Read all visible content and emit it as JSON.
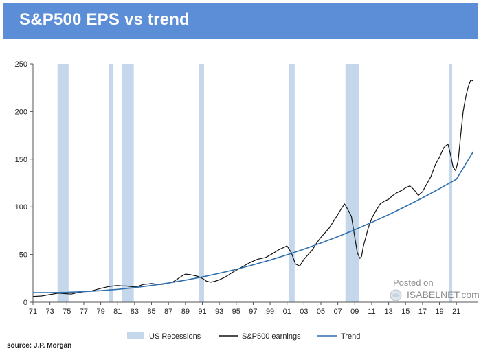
{
  "banner": {
    "title": "S&P500 EPS vs trend"
  },
  "chart_data": {
    "type": "line",
    "title": "S&P500 EPS vs trend",
    "xlabel": "",
    "ylabel": "",
    "xlim": [
      1971,
      2023.5
    ],
    "ylim": [
      0,
      250
    ],
    "yticks": [
      0,
      50,
      100,
      150,
      200,
      250
    ],
    "xtick_labels": [
      "71",
      "73",
      "75",
      "77",
      "79",
      "81",
      "83",
      "85",
      "87",
      "89",
      "91",
      "93",
      "95",
      "97",
      "99",
      "01",
      "03",
      "05",
      "07",
      "09",
      "11",
      "13",
      "15",
      "17",
      "19",
      "21"
    ],
    "grid": false,
    "legend_position": "bottom",
    "recessions": {
      "name": "US Recessions",
      "color": "#c5d7ea",
      "periods": [
        [
          1973.9,
          1975.2
        ],
        [
          1980.0,
          1980.5
        ],
        [
          1981.5,
          1982.9
        ],
        [
          1990.6,
          1991.2
        ],
        [
          2001.2,
          2001.9
        ],
        [
          2007.9,
          2009.5
        ],
        [
          2020.1,
          2020.5
        ]
      ]
    },
    "series": [
      {
        "name": "S&P500 earnings",
        "color": "#111111",
        "x": [
          1971.0,
          1972.0,
          1973.0,
          1974.0,
          1974.8,
          1975.5,
          1976.0,
          1977.0,
          1978.0,
          1979.0,
          1980.0,
          1980.5,
          1981.0,
          1981.5,
          1982.0,
          1982.5,
          1983.0,
          1983.5,
          1984.0,
          1985.0,
          1986.0,
          1986.5,
          1987.0,
          1987.5,
          1988.0,
          1988.5,
          1989.0,
          1989.5,
          1990.0,
          1990.5,
          1991.0,
          1991.5,
          1992.0,
          1992.5,
          1993.0,
          1993.5,
          1994.0,
          1994.5,
          1995.0,
          1995.5,
          1996.0,
          1996.5,
          1997.0,
          1997.5,
          1998.0,
          1998.5,
          1999.0,
          1999.5,
          2000.0,
          2000.5,
          2001.0,
          2001.5,
          2002.0,
          2002.5,
          2003.0,
          2003.5,
          2004.0,
          2004.5,
          2005.0,
          2005.5,
          2006.0,
          2006.5,
          2007.0,
          2007.4,
          2007.8,
          2008.2,
          2008.6,
          2009.0,
          2009.3,
          2009.6,
          2009.8,
          2010.0,
          2010.3,
          2010.6,
          2011.0,
          2011.5,
          2012.0,
          2012.5,
          2013.0,
          2013.5,
          2014.0,
          2014.5,
          2015.0,
          2015.5,
          2016.0,
          2016.5,
          2017.0,
          2017.5,
          2018.0,
          2018.5,
          2019.0,
          2019.5,
          2020.0,
          2020.3,
          2020.6,
          2020.9,
          2021.2,
          2021.5,
          2021.8,
          2022.1,
          2022.4,
          2022.7,
          2023.0
        ],
        "y": [
          6,
          6.5,
          8,
          9.5,
          9,
          8.5,
          9.5,
          11,
          12,
          14.5,
          16.5,
          17,
          17.5,
          17,
          17,
          16.5,
          16,
          17,
          18.5,
          19.5,
          18.5,
          19,
          20,
          21,
          24,
          27,
          29.5,
          29,
          28,
          27,
          25,
          22,
          21,
          22,
          23.5,
          25.5,
          28,
          31,
          33.5,
          36,
          38.5,
          41,
          43,
          45,
          46,
          47,
          49.5,
          52,
          55,
          57,
          59,
          52,
          40,
          38,
          45,
          50,
          55,
          62,
          68,
          73,
          78,
          85,
          92,
          98,
          103,
          97,
          90,
          68,
          52,
          46,
          48,
          58,
          68,
          78,
          88,
          96,
          103,
          106,
          108,
          112,
          115,
          117,
          120,
          122,
          118,
          112,
          116,
          124,
          132,
          144,
          152,
          162,
          166,
          155,
          142,
          138,
          148,
          175,
          200,
          215,
          226,
          233,
          232
        ]
      },
      {
        "name": "Trend",
        "color": "#2f6fae",
        "x": [
          1971,
          1973,
          1975,
          1977,
          1979,
          1981,
          1983,
          1985,
          1987,
          1989,
          1991,
          1993,
          1995,
          1997,
          1999,
          2001,
          2003,
          2005,
          2007,
          2009,
          2011,
          2013,
          2015,
          2017,
          2019,
          2021,
          2023
        ],
        "y": [
          10,
          10.1,
          10.4,
          11.1,
          12.1,
          13.5,
          15.3,
          17.5,
          20.1,
          23.1,
          26.5,
          30.3,
          34.5,
          39.2,
          44.2,
          49.7,
          55.6,
          62,
          68.8,
          76,
          83.7,
          91.8,
          100.4,
          109.5,
          119,
          129,
          158
        ]
      }
    ],
    "legend": [
      {
        "name": "US Recessions",
        "symbol": "band"
      },
      {
        "name": "S&P500 earnings",
        "symbol": "line"
      },
      {
        "name": "Trend",
        "symbol": "line"
      }
    ]
  },
  "watermark": {
    "posted_on": "Posted on",
    "brand": "ISABELNET.com"
  },
  "source": "source: J.P. Morgan",
  "colors": {
    "banner": "#5b8ed6",
    "recession_band": "#c5d7ea",
    "earnings_line": "#111111",
    "trend_line": "#2f6fae"
  }
}
